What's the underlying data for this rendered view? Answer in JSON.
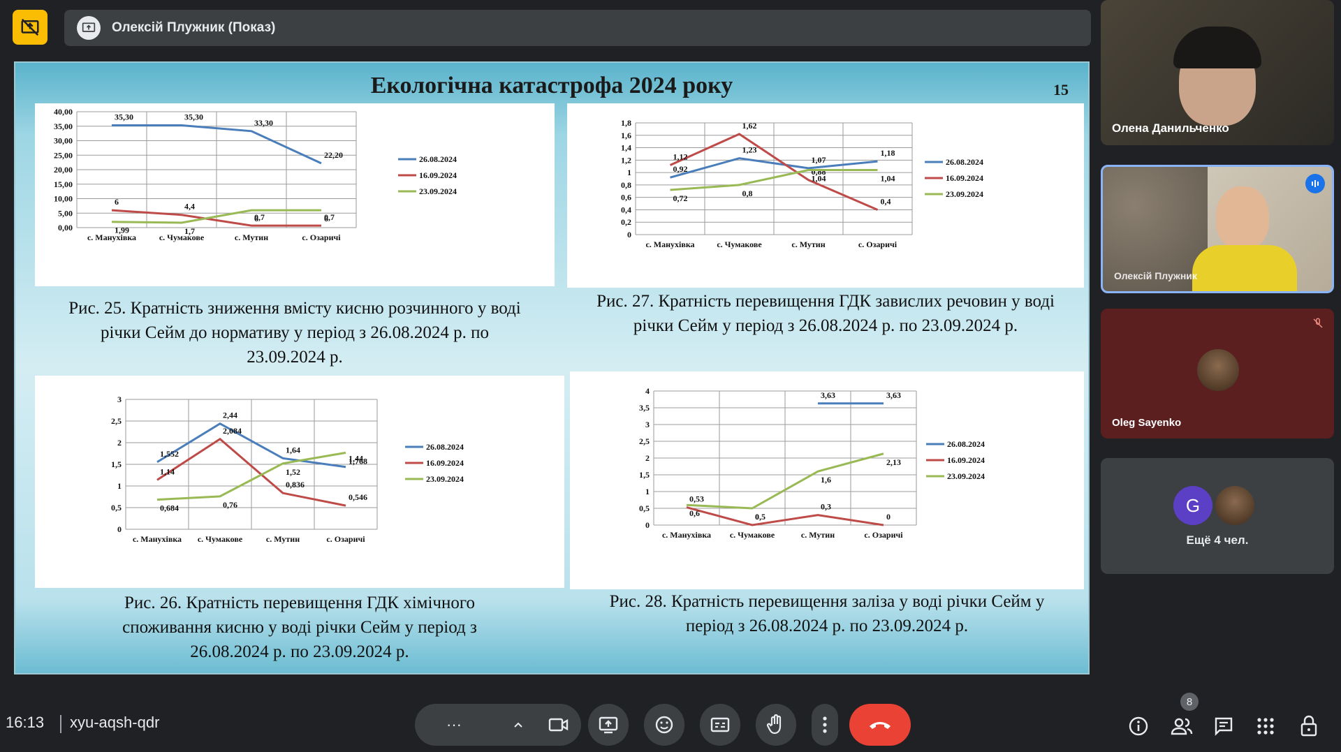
{
  "meeting": {
    "presenter_label": "Олексій Плужник (Показ)",
    "time": "16:13",
    "meeting_code": "xyu-aqsh-qdr",
    "people_count": "8"
  },
  "slide": {
    "title": "Екологічна катастрофа 2024 року",
    "number": "15",
    "captions": {
      "fig25": "Рис. 25. Кратність зниження вмісту кисню розчинного у воді річки Сейм до нормативу у період з 26.08.2024 р. по 23.09.2024 р.",
      "fig27": "Рис. 27. Кратність перевищення ГДК завислих речовин у воді річки Сейм у період з 26.08.2024 р. по 23.09.2024 р.",
      "fig26": "Рис. 26. Кратність перевищення ГДК хімічного споживання кисню у воді річки Сейм у період з 26.08.2024 р. по 23.09.2024 р.",
      "fig28": "Рис. 28. Кратність перевищення заліза у воді річки Сейм у період з 26.08.2024 р. по 23.09.2024 р."
    }
  },
  "colors": {
    "s1": "#4a7ebb",
    "s2": "#be4b48",
    "s3": "#98b954"
  },
  "chart_data": [
    {
      "id": "fig25",
      "type": "line",
      "categories": [
        "с. Манухівка",
        "с. Чумакове",
        "с. Мутин",
        "с. Озаричі"
      ],
      "ylim": [
        0,
        40
      ],
      "yticks": [
        "0,00",
        "5,00",
        "10,00",
        "15,00",
        "20,00",
        "25,00",
        "30,00",
        "35,00",
        "40,00"
      ],
      "series": [
        {
          "name": "26.08.2024",
          "values": [
            35.3,
            35.3,
            33.3,
            22.2
          ],
          "labels": [
            "35,30",
            "35,30",
            "33,30",
            "22,20"
          ]
        },
        {
          "name": "16.09.2024",
          "values": [
            6,
            4.4,
            0.7,
            0.7
          ],
          "labels": [
            "6",
            "4,4",
            "0,7",
            "0,7"
          ]
        },
        {
          "name": "23.09.2024",
          "values": [
            1.99,
            1.7,
            6,
            6
          ],
          "labels": [
            "1,99",
            "1,7",
            "6",
            "6"
          ]
        }
      ]
    },
    {
      "id": "fig27",
      "type": "line",
      "categories": [
        "с. Манухівка",
        "с. Чумакове",
        "с. Мутин",
        "с. Озаричі"
      ],
      "ylim": [
        0,
        1.8
      ],
      "yticks": [
        "0",
        "0,2",
        "0,4",
        "0,6",
        "0,8",
        "1",
        "1,2",
        "1,4",
        "1,6",
        "1,8"
      ],
      "series": [
        {
          "name": "26.08.2024",
          "values": [
            0.92,
            1.23,
            1.07,
            1.18
          ],
          "labels": [
            "0,92",
            "1,23",
            "1,07",
            "1,18"
          ]
        },
        {
          "name": "16.09.2024",
          "values": [
            1.12,
            1.62,
            0.88,
            0.4
          ],
          "labels": [
            "1,12",
            "1,62",
            "0,88",
            "0,4"
          ]
        },
        {
          "name": "23.09.2024",
          "values": [
            0.72,
            0.8,
            1.04,
            1.04
          ],
          "labels": [
            "0,72",
            "0,8",
            "1,04",
            "1,04"
          ]
        }
      ]
    },
    {
      "id": "fig26",
      "type": "line",
      "categories": [
        "с. Манухівка",
        "с. Чумакове",
        "с. Мутин",
        "с. Озаричі"
      ],
      "ylim": [
        0,
        3
      ],
      "yticks": [
        "0",
        "0,5",
        "1",
        "1,5",
        "2",
        "2,5",
        "3"
      ],
      "series": [
        {
          "name": "26.08.2024",
          "values": [
            1.552,
            2.44,
            1.64,
            1.44
          ],
          "labels": [
            "1,552",
            "2,44",
            "1,64",
            "1,44"
          ]
        },
        {
          "name": "16.09.2024",
          "values": [
            1.14,
            2.084,
            0.836,
            0.546
          ],
          "labels": [
            "1,14",
            "2,084",
            "0,836",
            "0,546"
          ]
        },
        {
          "name": "23.09.2024",
          "values": [
            0.684,
            0.76,
            1.52,
            1.768
          ],
          "labels": [
            "0,684",
            "0,76",
            "1,52",
            "1,768"
          ]
        }
      ]
    },
    {
      "id": "fig28",
      "type": "line",
      "categories": [
        "с. Манухівка",
        "с. Чумакове",
        "с. Мутин",
        "с. Озаричі"
      ],
      "ylim": [
        0,
        4
      ],
      "yticks": [
        "0",
        "0,5",
        "1",
        "1,5",
        "2",
        "2,5",
        "3",
        "3,5",
        "4"
      ],
      "series": [
        {
          "name": "26.08.2024",
          "values": [
            null,
            null,
            3.63,
            3.63
          ],
          "labels": [
            "",
            "",
            "3,63",
            "3,63"
          ]
        },
        {
          "name": "16.09.2024",
          "values": [
            0.53,
            0,
            0.3,
            0
          ],
          "labels": [
            "0,53",
            "0",
            "0,3",
            "0"
          ]
        },
        {
          "name": "23.09.2024",
          "values": [
            0.6,
            0.5,
            1.6,
            2.13
          ],
          "labels": [
            "0,6",
            "0,5",
            "1,6",
            "2,13"
          ]
        }
      ]
    }
  ],
  "participants": [
    {
      "name": "Олена Данильченко"
    },
    {
      "name": "Олексій Плужник"
    },
    {
      "name": "Oleg Sayenko"
    },
    {
      "name": "Ещё 4 чел.",
      "avatar_letter": "G"
    }
  ],
  "icons": {
    "stop_share": "present-off-icon",
    "mic": "mic-icon",
    "camera": "camera-icon",
    "present": "present-icon",
    "emoji": "emoji-icon",
    "captions": "captions-icon",
    "hand": "raise-hand-icon",
    "more": "more-vert-icon",
    "hangup": "hangup-icon",
    "info": "info-icon",
    "people": "people-icon",
    "chat": "chat-icon",
    "activities": "apps-icon",
    "lock": "host-controls-icon"
  }
}
